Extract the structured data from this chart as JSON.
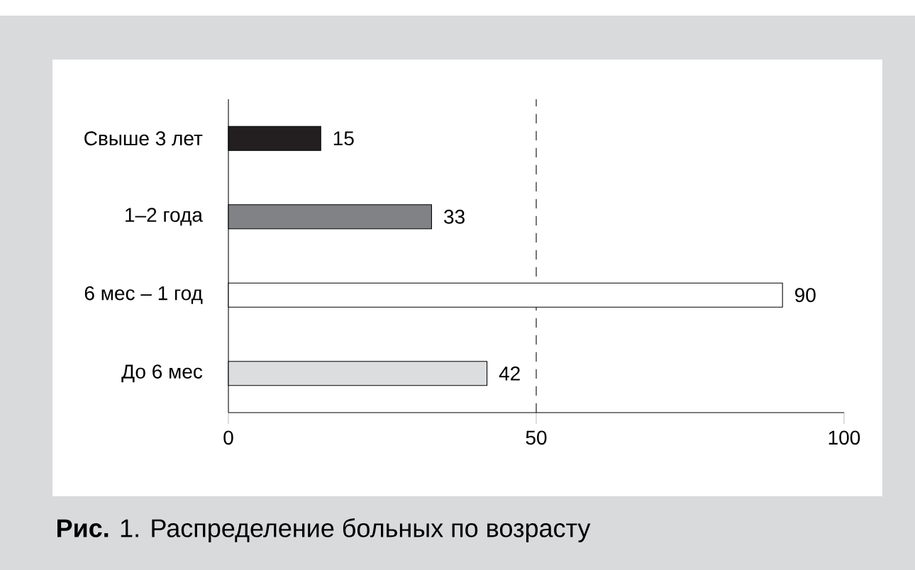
{
  "chart_data": {
    "type": "bar",
    "orientation": "horizontal",
    "title": "**Рис.** 1.  Распределение больных по возрасту",
    "categories": [
      "Свыше 3 лет",
      "1–2 года",
      "6 мес – 1 год",
      "До 6 мес"
    ],
    "values": [
      15,
      33,
      90,
      42
    ],
    "colors": [
      "#231f20",
      "#808285",
      "#ffffff",
      "#dcddde"
    ],
    "xlim": [
      0,
      100
    ],
    "xticks": [
      0,
      50,
      100
    ],
    "ref_lines": [
      {
        "axis": "x",
        "value": 50,
        "line_style": "dashed"
      }
    ],
    "data_labels": true
  }
}
